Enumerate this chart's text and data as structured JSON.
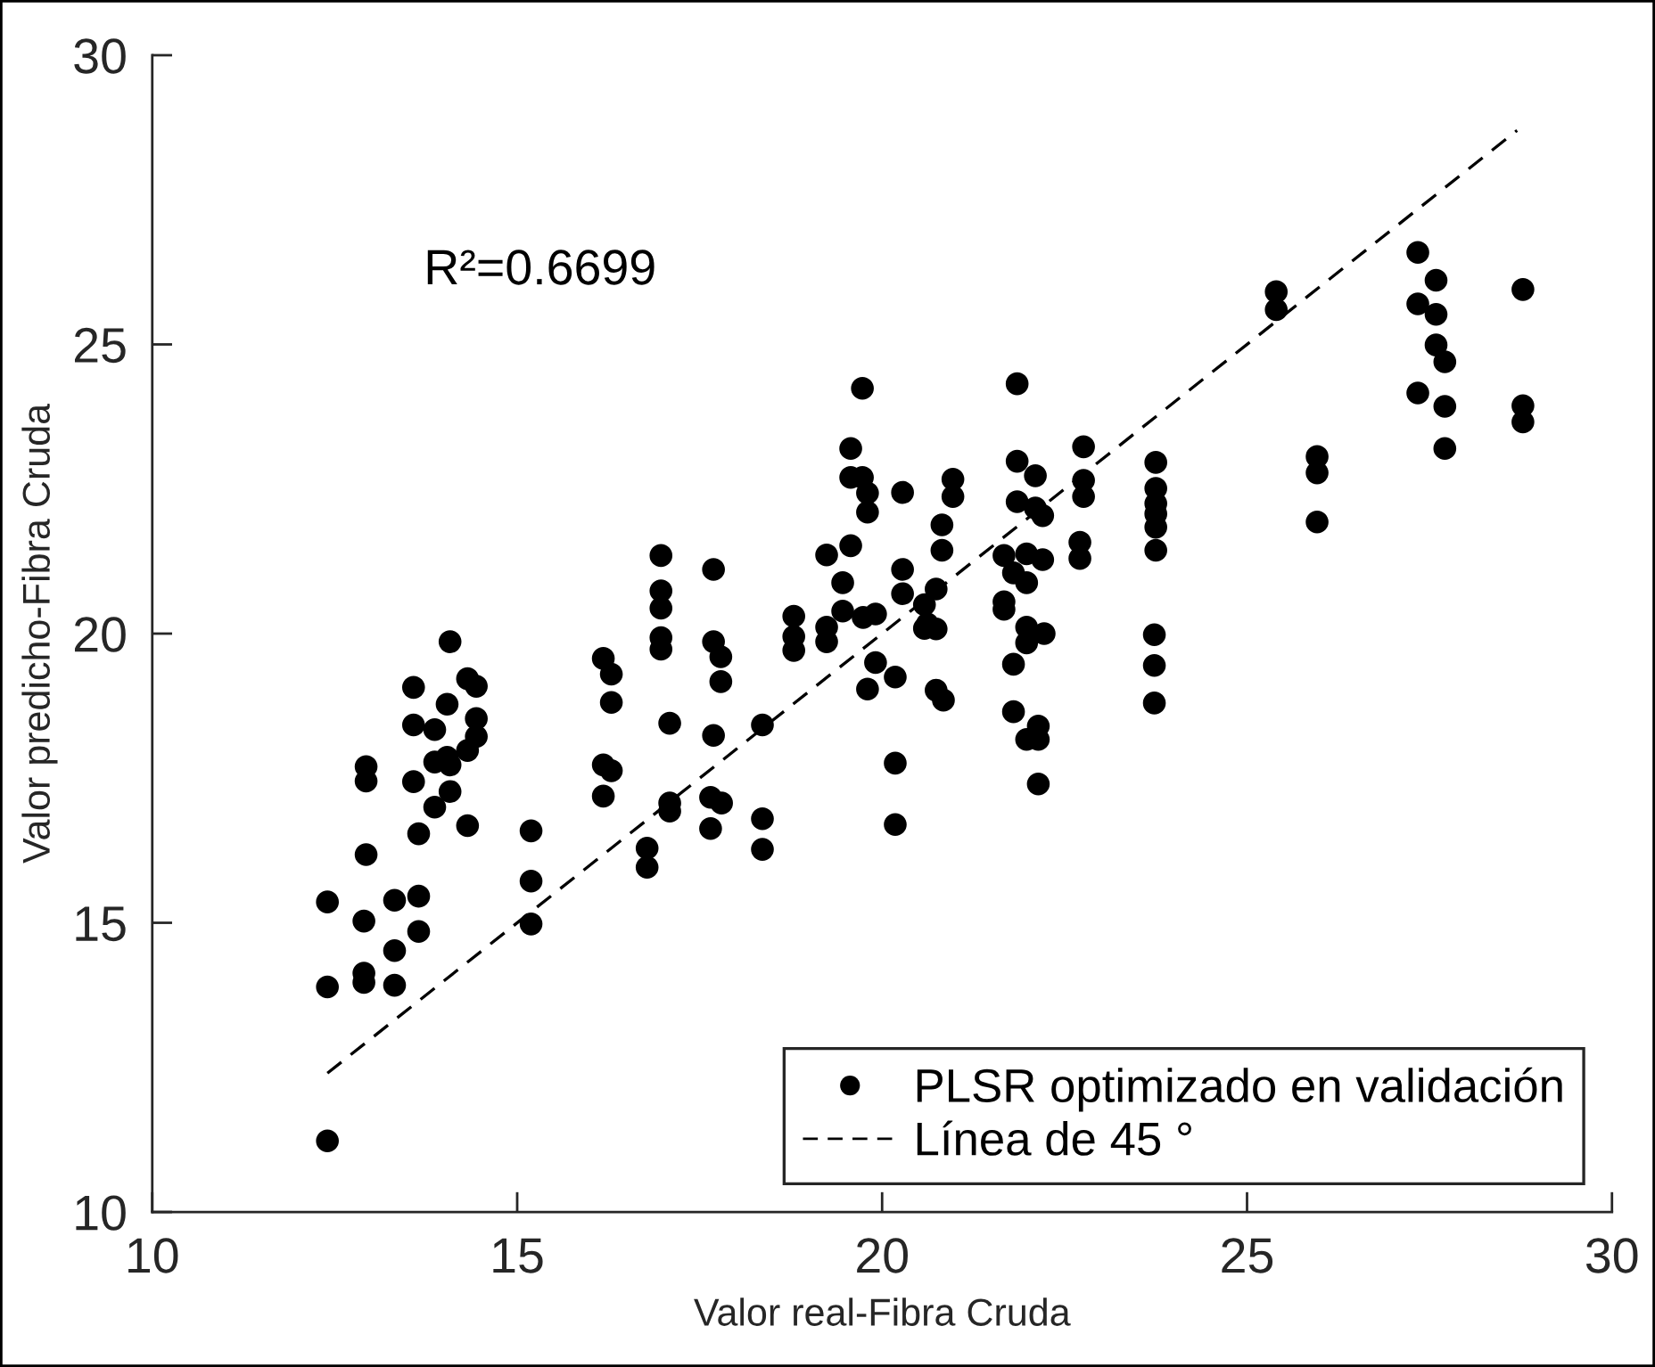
{
  "chart_data": {
    "type": "scatter",
    "xlabel": "Valor real-Fibra Cruda",
    "ylabel": "Valor predicho-Fibra Cruda",
    "annotations": [
      "R²=0.6699"
    ],
    "xlim": [
      10,
      30
    ],
    "ylim": [
      10,
      30
    ],
    "xticks": [
      10,
      15,
      20,
      25,
      30
    ],
    "yticks": [
      10,
      15,
      20,
      25,
      30
    ],
    "legend": "bottom right",
    "series": [
      {
        "name": "PLSR optimizado en validación",
        "color": "#000000",
        "marker": "circle",
        "x": [
          12.4,
          12.4,
          12.4,
          12.9,
          12.9,
          12.9,
          12.93,
          12.93,
          12.93,
          13.32,
          13.32,
          13.32,
          13.65,
          13.65,
          13.65,
          13.58,
          13.58,
          13.58,
          13.87,
          13.87,
          13.87,
          14.04,
          14.04,
          14.08,
          14.08,
          14.08,
          14.32,
          14.44,
          14.44,
          14.44,
          14.32,
          14.32,
          15.19,
          15.19,
          15.19,
          16.18,
          16.29,
          16.29,
          16.18,
          16.29,
          16.18,
          16.78,
          16.78,
          16.97,
          17.09,
          17.09,
          17.09,
          17.69,
          17.79,
          17.79,
          17.69,
          17.65,
          17.8,
          17.65,
          16.97,
          16.97,
          16.97,
          16.97,
          17.69,
          18.36,
          18.36,
          18.36,
          18.79,
          18.79,
          18.79,
          19.24,
          19.57,
          19.24,
          19.24,
          19.46,
          19.46,
          19.74,
          19.91,
          19.91,
          19.8,
          20.18,
          20.18,
          20.18,
          20.28,
          20.28,
          20.58,
          20.62,
          20.74,
          20.58,
          20.74,
          20.82,
          20.74,
          20.84,
          21.67,
          21.67,
          21.67,
          21.8,
          21.8,
          21.98,
          22.2,
          21.8,
          21.98,
          21.98,
          22.22,
          21.98,
          21.98,
          22.14,
          22.14,
          22.14,
          22.71,
          22.71,
          22.76,
          22.76,
          22.76,
          23.75,
          23.75,
          23.75,
          23.75,
          23.75,
          23.75,
          23.73,
          23.73,
          23.73,
          25.96,
          25.96,
          25.96,
          27.34,
          27.71,
          27.71,
          27.71,
          28.78,
          28.78,
          19.57,
          19.57,
          19.73,
          19.73,
          19.8,
          19.8,
          20.28,
          20.97,
          20.97,
          20.82,
          21.85,
          21.85,
          22.1,
          21.85,
          22.1,
          22.2,
          25.4,
          25.4,
          27.34,
          27.34,
          27.59,
          27.59,
          27.59,
          28.78
        ],
        "values": [
          11.23,
          13.89,
          15.36,
          15.03,
          14.13,
          13.97,
          16.18,
          17.7,
          17.45,
          15.39,
          14.52,
          13.92,
          15.46,
          14.85,
          16.54,
          19.07,
          18.42,
          17.44,
          18.34,
          17.0,
          17.78,
          18.78,
          17.86,
          17.73,
          17.27,
          19.86,
          19.22,
          19.09,
          18.53,
          18.22,
          17.98,
          16.68,
          16.59,
          15.72,
          14.98,
          19.57,
          19.3,
          18.81,
          17.73,
          17.63,
          17.19,
          16.29,
          15.96,
          19.73,
          18.45,
          17.07,
          16.93,
          19.86,
          19.6,
          19.17,
          18.24,
          17.17,
          17.07,
          16.63,
          21.35,
          20.74,
          20.44,
          19.93,
          21.11,
          18.42,
          16.8,
          16.27,
          20.3,
          19.95,
          19.71,
          21.36,
          21.52,
          20.11,
          19.86,
          20.88,
          20.39,
          20.28,
          20.34,
          19.5,
          19.04,
          19.25,
          17.76,
          16.7,
          21.11,
          20.69,
          20.5,
          20.17,
          20.08,
          20.09,
          20.77,
          21.44,
          19.02,
          18.85,
          21.35,
          20.55,
          20.42,
          19.47,
          18.65,
          21.38,
          21.28,
          21.05,
          20.88,
          20.11,
          20.0,
          19.84,
          18.17,
          18.4,
          18.17,
          17.4,
          21.58,
          21.3,
          23.23,
          22.65,
          22.37,
          22.96,
          22.51,
          22.25,
          22.07,
          21.84,
          21.44,
          19.98,
          19.45,
          18.8,
          23.06,
          22.78,
          21.93,
          24.16,
          24.7,
          23.93,
          23.2,
          23.94,
          23.66,
          23.2,
          22.7,
          22.7,
          24.24,
          22.43,
          22.1,
          22.44,
          22.67,
          22.37,
          21.88,
          24.32,
          22.98,
          22.73,
          22.28,
          22.17,
          22.04,
          25.91,
          25.6,
          26.59,
          25.7,
          26.11,
          25.52,
          24.99,
          25.95
        ]
      },
      {
        "name": "Línea de 45 °",
        "type": "line",
        "color": "#000000",
        "line_style": "dashed",
        "x": [
          12.4,
          28.7
        ],
        "values": [
          12.4,
          28.7
        ]
      }
    ]
  }
}
